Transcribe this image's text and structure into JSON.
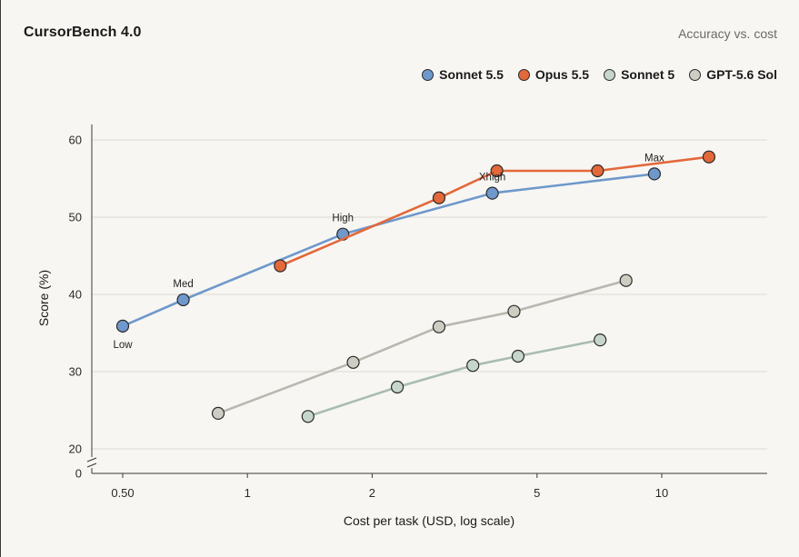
{
  "header": {
    "title": "CursorBench 4.0",
    "subtitle": "Accuracy vs. cost"
  },
  "chart_data": {
    "type": "line",
    "xlabel": "Cost per task (USD, log scale)",
    "ylabel": "Score (%)",
    "x_scale": "log",
    "xlim": [
      0.4,
      15
    ],
    "ylim": [
      20,
      61
    ],
    "y_axis_break": true,
    "x_ticks": [
      0.5,
      1,
      2,
      5,
      10
    ],
    "x_tick_labels": [
      "0.50",
      "1",
      "2",
      "5",
      "10"
    ],
    "y_ticks": [
      20,
      30,
      40,
      50,
      60
    ],
    "y_tick_labels": [
      "20",
      "30",
      "40",
      "50",
      "60"
    ],
    "y_zero_label": "0",
    "grid": true,
    "legend_position": "top-right",
    "series": [
      {
        "name": "Sonnet 5.5",
        "color": "#6f98cc",
        "line_color": "#6f98cc",
        "points": [
          {
            "x": 0.5,
            "y": 35.9,
            "label": "Low",
            "label_pos": "below"
          },
          {
            "x": 0.7,
            "y": 39.3,
            "label": "Med",
            "label_pos": "above"
          },
          {
            "x": 1.7,
            "y": 47.8,
            "label": "High",
            "label_pos": "above"
          },
          {
            "x": 3.9,
            "y": 53.1,
            "label": "Xhigh",
            "label_pos": "above"
          },
          {
            "x": 9.6,
            "y": 55.6,
            "label": "Max",
            "label_pos": "above"
          }
        ]
      },
      {
        "name": "Opus 5.5",
        "color": "#e3683a",
        "line_color": "#e3683a",
        "points": [
          {
            "x": 1.2,
            "y": 43.7
          },
          {
            "x": 2.9,
            "y": 52.5
          },
          {
            "x": 4.0,
            "y": 56.0
          },
          {
            "x": 7.0,
            "y": 56.0
          },
          {
            "x": 13.0,
            "y": 57.8
          }
        ]
      },
      {
        "name": "Sonnet 5",
        "color": "#c6d6cc",
        "line_color": "#a9bcb2",
        "points": [
          {
            "x": 1.4,
            "y": 24.2
          },
          {
            "x": 2.3,
            "y": 28.0
          },
          {
            "x": 3.5,
            "y": 30.8
          },
          {
            "x": 4.5,
            "y": 32.0
          },
          {
            "x": 7.1,
            "y": 34.1
          }
        ]
      },
      {
        "name": "GPT-5.6 Sol",
        "color": "#cfccc4",
        "line_color": "#bab7b0",
        "points": [
          {
            "x": 0.85,
            "y": 24.6
          },
          {
            "x": 1.8,
            "y": 31.2
          },
          {
            "x": 2.9,
            "y": 35.8
          },
          {
            "x": 4.4,
            "y": 37.8
          },
          {
            "x": 8.2,
            "y": 41.8
          }
        ]
      }
    ]
  }
}
